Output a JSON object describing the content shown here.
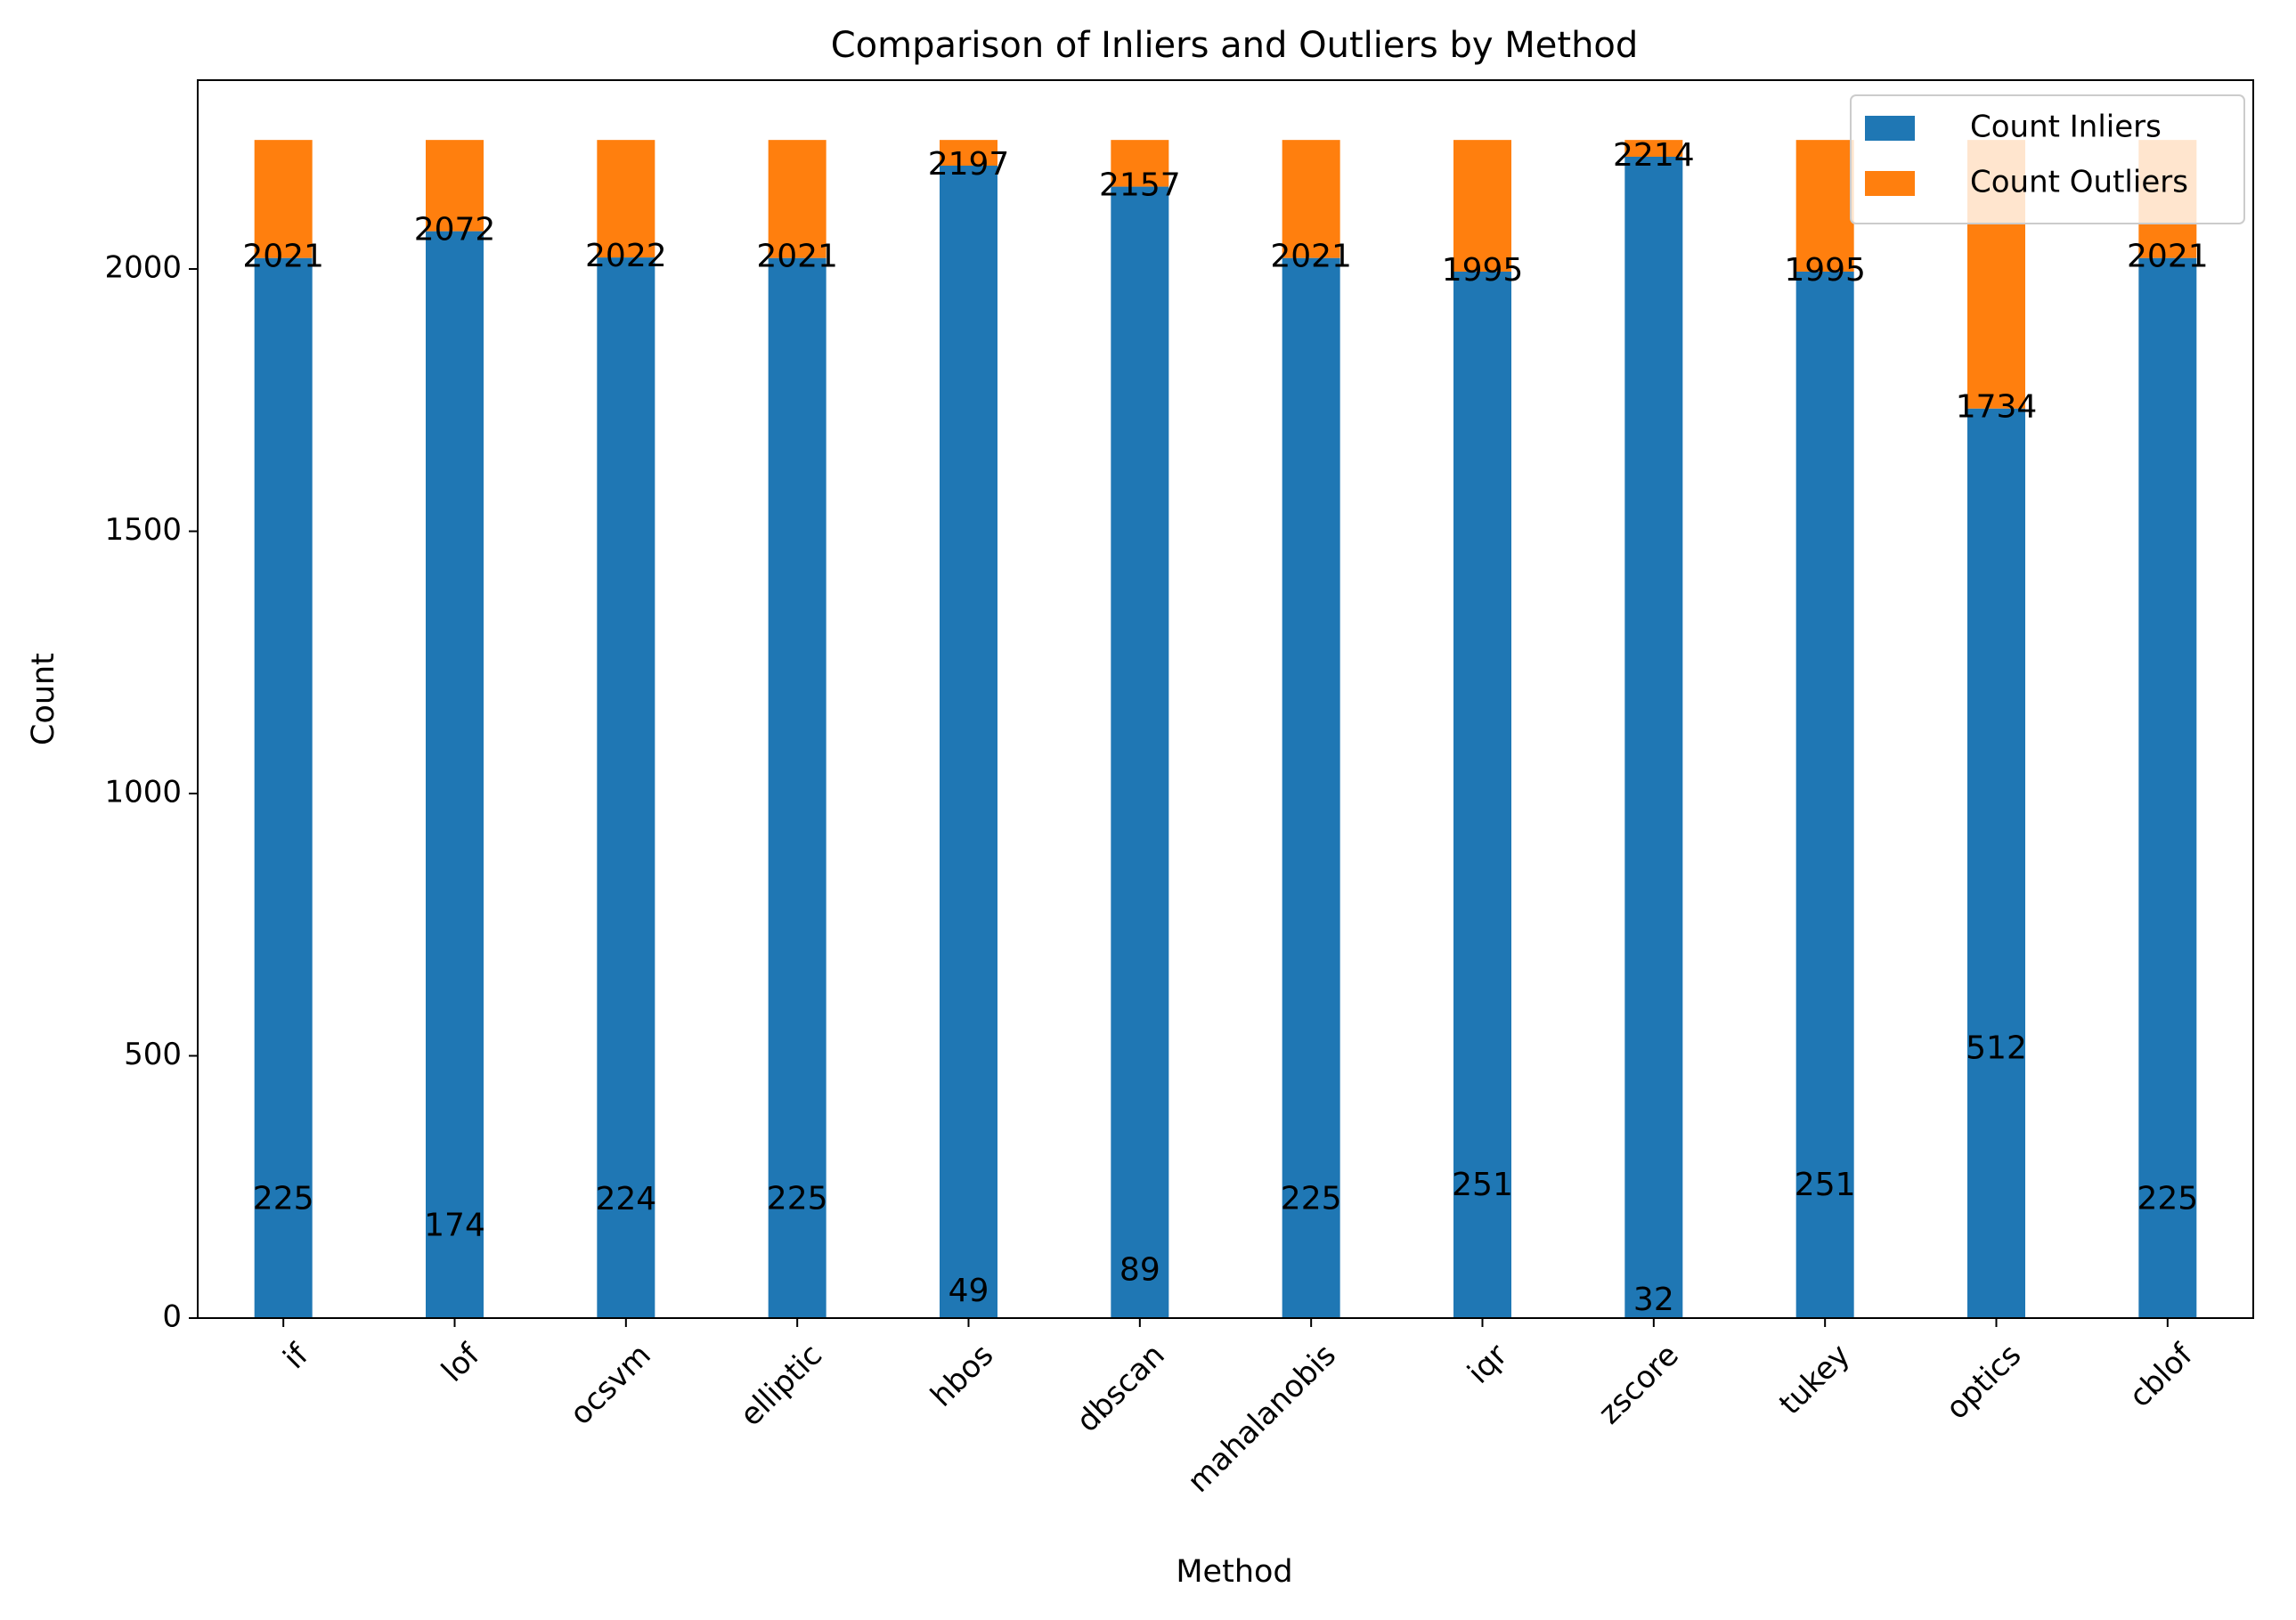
{
  "chart_data": {
    "type": "bar",
    "stacked": true,
    "title": "Comparison of Inliers and Outliers by Method",
    "xlabel": "Method",
    "ylabel": "Count",
    "ylim": [
      0,
      2360
    ],
    "yticks": [
      0,
      500,
      1000,
      1500,
      2000
    ],
    "categories": [
      "if",
      "lof",
      "ocsvm",
      "elliptic",
      "hbos",
      "dbscan",
      "mahalanobis",
      "iqr",
      "zscore",
      "tukey",
      "optics",
      "cblof"
    ],
    "series": [
      {
        "name": "Count Inliers",
        "color": "#1f77b4",
        "values": [
          2021,
          2072,
          2022,
          2021,
          2197,
          2157,
          2021,
          1995,
          2214,
          1995,
          1734,
          2021
        ]
      },
      {
        "name": "Count Outliers",
        "color": "#ff7f0e",
        "values": [
          225,
          174,
          224,
          225,
          49,
          89,
          225,
          251,
          32,
          251,
          512,
          225
        ]
      }
    ],
    "legend_position": "top-right",
    "grid": false,
    "tick_label_rotation": 45
  }
}
